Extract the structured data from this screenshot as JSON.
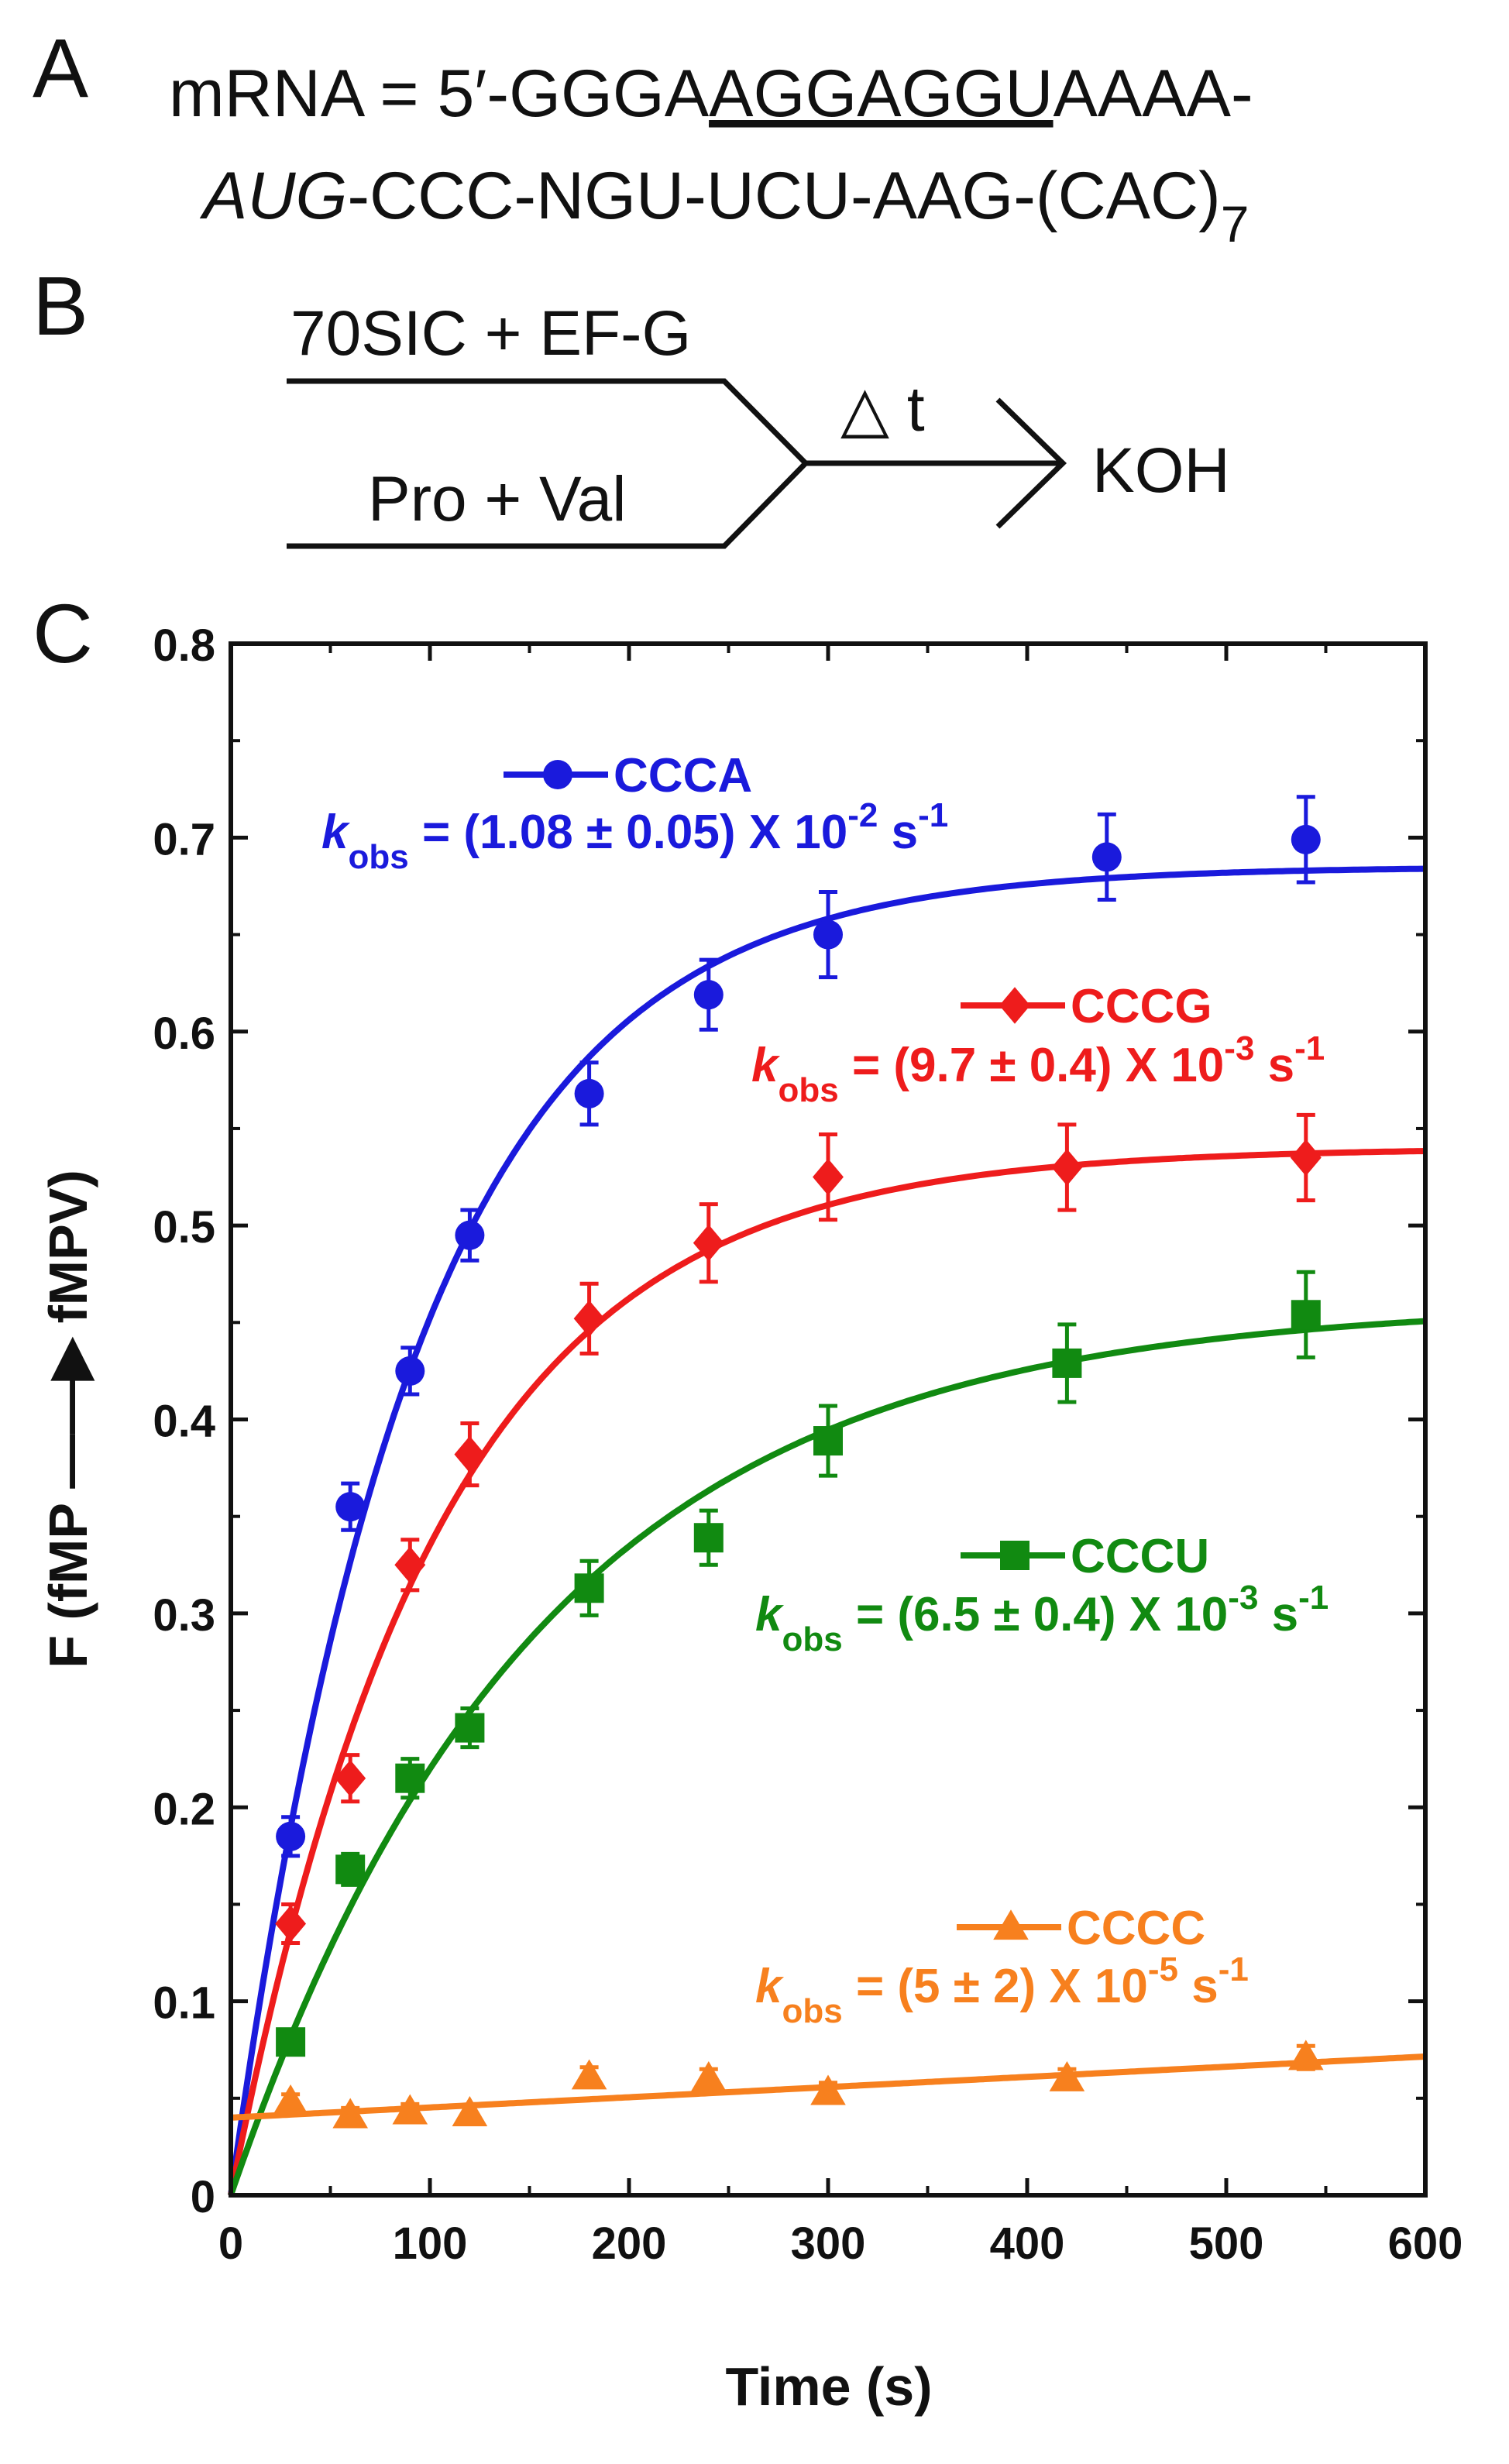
{
  "panel_a": {
    "label": "A",
    "line1_prefix": "mRNA = 5′-GGGA",
    "line1_underlined": "AGGAGGU",
    "line1_suffix": "AAAA-",
    "line2_start_codon": "AUG",
    "line2_rest": "-CCC-NGU-UCU-AAG-(CAC)",
    "line2_subscript": "7"
  },
  "panel_b": {
    "label": "B",
    "top_reagent": "70SIC + EF-G",
    "bottom_reagent": "Pro + Val",
    "delay_label": "△ t",
    "quench": "KOH"
  },
  "panel_c": {
    "label": "C"
  },
  "chart_data": {
    "type": "scatter",
    "title": "",
    "xlabel": "Time (s)",
    "ylabel": "F (fMP ——▶ fMPV)",
    "xlim": [
      0,
      600
    ],
    "ylim": [
      0,
      0.8
    ],
    "xticks": [
      0,
      100,
      200,
      300,
      400,
      500,
      600
    ],
    "yticks": [
      0,
      0.1,
      0.2,
      0.3,
      0.4,
      0.5,
      0.6,
      0.7,
      0.8
    ],
    "ytick_labels": [
      "0",
      "0.1",
      "0.2",
      "0.3",
      "0.4",
      "0.5",
      "0.6",
      "0.7",
      "0.8"
    ],
    "xtick_labels": [
      "0",
      "100",
      "200",
      "300",
      "400",
      "500",
      "600"
    ],
    "grid": false,
    "series": [
      {
        "name": "CCCA",
        "color": "#1a1adc",
        "marker": "circle",
        "k_prefix": "k",
        "k_sub": "obs",
        "k_text": " = (1.08 ± 0.05) X 10",
        "k_exp": "-2",
        "k_unit": " s",
        "k_unit_exp": "-1",
        "fit": {
          "model": "exponential",
          "a": 0.685,
          "k": 0.0108,
          "c": 0
        },
        "x": [
          30,
          60,
          90,
          120,
          180,
          240,
          300,
          440,
          540
        ],
        "y": [
          0.185,
          0.355,
          0.425,
          0.495,
          0.568,
          0.619,
          0.65,
          0.69,
          0.699
        ],
        "err": [
          0.01,
          0.012,
          0.012,
          0.013,
          0.016,
          0.018,
          0.022,
          0.022,
          0.022
        ]
      },
      {
        "name": "CCCG",
        "color": "#ee1c1c",
        "marker": "diamond",
        "k_prefix": "k",
        "k_sub": "obs",
        "k_text": " = (9.7 ± 0.4) X 10",
        "k_exp": "-3",
        "k_unit": " s",
        "k_unit_exp": "-1",
        "fit": {
          "model": "exponential",
          "a": 0.54,
          "k": 0.0097,
          "c": 0
        },
        "x": [
          30,
          60,
          90,
          120,
          180,
          240,
          300,
          420,
          540
        ],
        "y": [
          0.14,
          0.215,
          0.325,
          0.382,
          0.452,
          0.491,
          0.525,
          0.53,
          0.535
        ],
        "err": [
          0.01,
          0.012,
          0.013,
          0.016,
          0.018,
          0.02,
          0.022,
          0.022,
          0.022
        ]
      },
      {
        "name": "CCCU",
        "color": "#118a11",
        "marker": "square",
        "k_prefix": "k",
        "k_sub": "obs",
        "k_text": " = (6.5 ± 0.4) X 10",
        "k_exp": "-3",
        "k_unit": " s",
        "k_unit_exp": "-1",
        "fit": {
          "model": "exponential",
          "a": 0.46,
          "k": 0.0065,
          "c": 0
        },
        "x": [
          30,
          60,
          90,
          120,
          180,
          240,
          300,
          420,
          540
        ],
        "y": [
          0.079,
          0.168,
          0.215,
          0.241,
          0.313,
          0.339,
          0.389,
          0.429,
          0.454
        ],
        "err": [
          0.006,
          0.008,
          0.01,
          0.01,
          0.014,
          0.014,
          0.018,
          0.02,
          0.022
        ]
      },
      {
        "name": "CCCC",
        "color": "#f7801e",
        "marker": "triangle",
        "k_prefix": "k",
        "k_sub": "obs",
        "k_text": " = (5 ± 2) X 10",
        "k_exp": "-5",
        "k_unit": " s",
        "k_unit_exp": "-1",
        "fit": {
          "model": "linear",
          "intercept": 0.04,
          "slope": 5.25e-05
        },
        "x": [
          30,
          60,
          90,
          120,
          180,
          240,
          300,
          420,
          540
        ],
        "y": [
          0.048,
          0.041,
          0.043,
          0.042,
          0.061,
          0.06,
          0.053,
          0.06,
          0.071
        ],
        "err": [
          0.004,
          0.004,
          0.004,
          0.004,
          0.005,
          0.005,
          0.005,
          0.005,
          0.006
        ]
      }
    ]
  }
}
